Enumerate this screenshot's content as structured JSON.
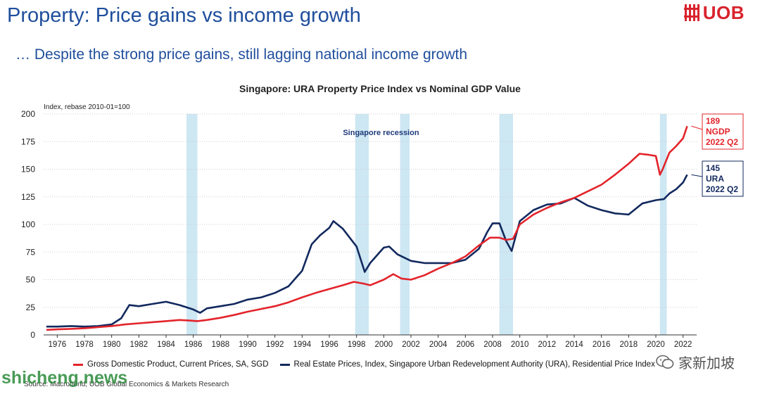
{
  "page": {
    "title": "Property: Price gains vs income growth",
    "subtitle": "… Despite the strong price gains, still lagging national income growth",
    "logo_text": "UOB",
    "source": "Source: Macrobond, UOB Global Economics & Markets Research",
    "watermark": "shicheng.news",
    "wechat_label": "家新加坡"
  },
  "colors": {
    "title": "#1f4e9c",
    "ngdp": "#e3242b",
    "ura": "#12295e",
    "recession": "#cde7f3",
    "logo": "#d9232d"
  },
  "chart_data": {
    "type": "line",
    "title": "Singapore: URA Property Price Index vs Nominal GDP Value",
    "ylabel": "Index, rebase 2010-01=100",
    "xlabel": "",
    "xlim": [
      1975,
      2023
    ],
    "ylim": [
      0,
      200
    ],
    "yticks": [
      0,
      25,
      50,
      75,
      100,
      125,
      150,
      175,
      200
    ],
    "xticks": [
      1976,
      1978,
      1980,
      1982,
      1984,
      1986,
      1988,
      1990,
      1992,
      1994,
      1996,
      1998,
      2000,
      2002,
      2004,
      2006,
      2008,
      2010,
      2012,
      2014,
      2016,
      2018,
      2020,
      2022
    ],
    "grid": true,
    "legend_position": "bottom",
    "annotation": "Singapore recession",
    "recessions": [
      [
        1985.5,
        1986.3
      ],
      [
        1997.9,
        1998.9
      ],
      [
        2001.2,
        2001.9
      ],
      [
        2008.5,
        2009.5
      ],
      [
        2020.3,
        2020.8
      ]
    ],
    "series": [
      {
        "name": "Gross Domestic Product, Current Prices, SA, SGD",
        "label": [
          "189",
          "NGDP",
          "2022 Q2"
        ],
        "x": [
          1975.2,
          1976,
          1977,
          1978,
          1979,
          1980,
          1981,
          1982,
          1983,
          1984,
          1985,
          1985.7,
          1986.3,
          1987,
          1988,
          1989,
          1990,
          1991,
          1992,
          1993,
          1994,
          1995,
          1996,
          1997,
          1997.8,
          1998.5,
          1999,
          2000,
          2000.7,
          2001.3,
          2002,
          2003,
          2004,
          2005,
          2006,
          2007,
          2007.8,
          2008.5,
          2009.0,
          2009.5,
          2010,
          2011,
          2012,
          2013,
          2014,
          2015,
          2016,
          2017,
          2018,
          2018.8,
          2019.5,
          2020,
          2020.3,
          2020.5,
          2021,
          2021.5,
          2022,
          2022.3
        ],
        "values": [
          4.5,
          5,
          5.5,
          6,
          7,
          8,
          9.5,
          10.5,
          11.5,
          12.5,
          13.5,
          13,
          12.5,
          13.5,
          15.5,
          18,
          21,
          23.5,
          26,
          29.5,
          34,
          38,
          41.5,
          45,
          48,
          46.5,
          45,
          50,
          55,
          51,
          50,
          54,
          60,
          65,
          71,
          81,
          88,
          88,
          86,
          87,
          100,
          109,
          115,
          120,
          124,
          130,
          136,
          145,
          155,
          164,
          163,
          162,
          145,
          150,
          165,
          171,
          178,
          189
        ]
      },
      {
        "name": "Real Estate Prices, Index, Singapore Urban Redevelopment Authority (URA), Residential Price Index",
        "label": [
          "145",
          "URA",
          "2022 Q2"
        ],
        "x": [
          1975.2,
          1976,
          1977,
          1978,
          1979,
          1980,
          1980.7,
          1981.3,
          1982,
          1983,
          1984,
          1985,
          1986.0,
          1986.5,
          1987,
          1988,
          1989,
          1990,
          1991,
          1992,
          1993,
          1994,
          1994.7,
          1995.3,
          1996.0,
          1996.3,
          1997,
          1998,
          1998.6,
          1999,
          2000,
          2000.4,
          2001,
          2002,
          2003,
          2004,
          2005,
          2006,
          2007,
          2007.6,
          2008,
          2008.5,
          2009,
          2009.4,
          2010,
          2011,
          2012,
          2013,
          2014,
          2015,
          2016,
          2017,
          2018,
          2019,
          2020,
          2020.6,
          2021,
          2021.5,
          2022,
          2022.3
        ],
        "values": [
          7.5,
          7.5,
          8,
          7.5,
          8,
          9.5,
          15,
          27,
          26,
          28,
          30,
          27,
          23,
          20,
          24,
          26,
          28,
          32,
          34,
          38,
          44,
          58,
          82,
          90,
          97,
          103,
          96,
          80,
          57,
          65,
          79,
          80,
          73,
          67,
          65,
          65,
          65,
          68,
          78,
          93,
          101,
          101,
          85,
          76,
          103,
          113,
          118,
          119,
          124,
          117,
          113,
          110,
          109,
          119,
          122,
          123,
          128,
          132,
          138,
          145
        ]
      }
    ]
  }
}
